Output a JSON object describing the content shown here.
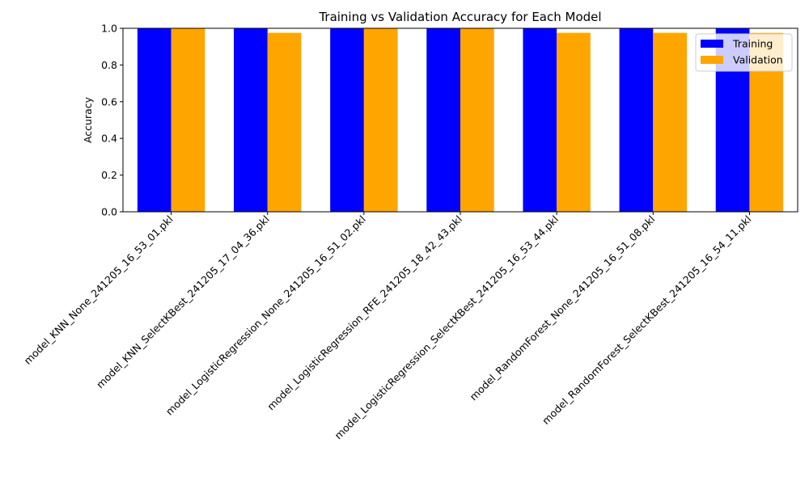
{
  "chart_data": {
    "type": "bar",
    "title": "Training vs Validation Accuracy for Each Model",
    "xlabel": "",
    "ylabel": "Accuracy",
    "ylim": [
      0,
      1.0
    ],
    "yticks": [
      "0.0",
      "0.2",
      "0.4",
      "0.6",
      "0.8",
      "1.0"
    ],
    "categories": [
      "model_KNN_None_241205_16_53_01.pkl",
      "model_KNN_SelectKBest_241205_17_04_36.pkl",
      "model_LogisticRegression_None_241205_16_51_02.pkl",
      "model_LogisticRegression_RFE_241205_18_42_43.pkl",
      "model_LogisticRegression_SelectKBest_241205_16_53_44.pkl",
      "model_RandomForest_None_241205_16_51_08.pkl",
      "model_RandomForest_SelectKBest_241205_16_54_11.pkl"
    ],
    "series": [
      {
        "name": "Training",
        "color": "#0000ff",
        "values": [
          1.0,
          1.0,
          1.0,
          1.0,
          1.0,
          1.0,
          1.0
        ]
      },
      {
        "name": "Validation",
        "color": "#ffa500",
        "values": [
          1.0,
          0.975,
          1.0,
          1.0,
          0.975,
          0.975,
          0.975
        ]
      }
    ],
    "legend_position": "top-right",
    "grid": false
  }
}
